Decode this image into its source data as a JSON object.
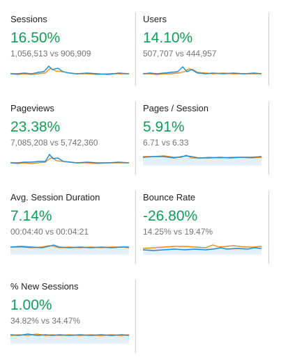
{
  "metrics": [
    {
      "title": "Sessions",
      "change": "16.50%",
      "comparison": "1,056,513 vs 906,909"
    },
    {
      "title": "Users",
      "change": "14.10%",
      "comparison": "507,707 vs 444,957"
    },
    {
      "title": "Pageviews",
      "change": "23.38%",
      "comparison": "7,085,208 vs 5,742,360"
    },
    {
      "title": "Pages / Session",
      "change": "5.91%",
      "comparison": "6.71 vs 6.33"
    },
    {
      "title": "Avg. Session Duration",
      "change": "7.14%",
      "comparison": "00:04:40 vs 00:04:21"
    },
    {
      "title": "Bounce Rate",
      "change": "-26.80%",
      "comparison": "14.25% vs 19.47%"
    },
    {
      "title": "% New Sessions",
      "change": "1.00%",
      "comparison": "34.82% vs 34.47%"
    }
  ],
  "colors": {
    "positive": "#0f9d58",
    "series_current": "#1a8cd8",
    "series_previous": "#f08c1e",
    "area_fill": "#e3f0fa"
  }
}
